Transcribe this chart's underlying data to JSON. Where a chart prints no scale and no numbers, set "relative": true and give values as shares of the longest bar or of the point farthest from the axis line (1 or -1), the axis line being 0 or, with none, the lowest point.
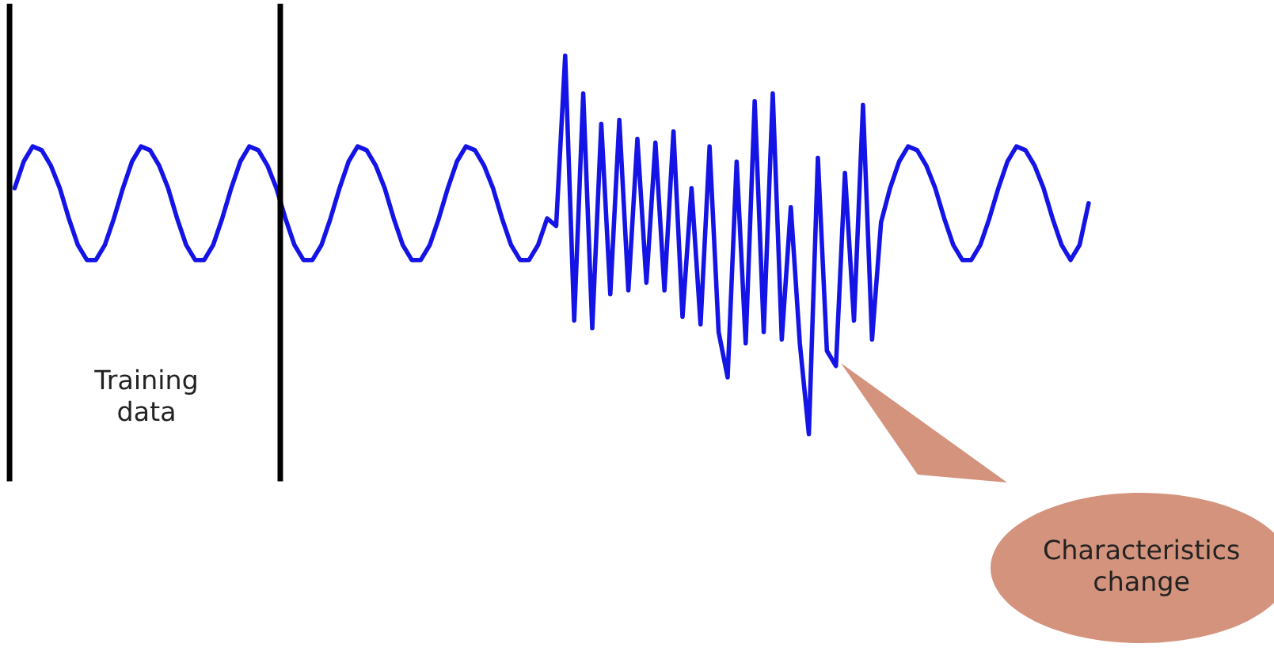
{
  "chart_data": {
    "type": "line",
    "relative": true,
    "tick_labels": false,
    "categories": [
      null,
      null,
      null,
      null,
      null,
      null,
      null,
      null,
      null,
      null,
      null,
      null,
      null,
      null,
      null,
      null,
      null,
      null,
      null,
      null,
      null,
      null,
      null,
      null,
      null,
      null,
      null,
      null,
      null,
      null,
      null,
      null,
      null,
      null,
      null,
      null,
      null,
      null,
      null,
      null,
      null,
      null,
      null,
      null,
      null,
      null,
      null,
      null,
      null,
      null,
      null,
      null,
      null,
      null,
      null,
      null,
      null,
      null,
      null,
      null,
      null,
      null,
      null,
      null,
      null,
      null,
      null,
      null,
      null,
      null,
      null,
      null,
      null,
      null,
      null,
      null,
      null,
      null,
      null,
      null,
      null,
      null,
      null,
      null,
      null,
      null,
      null,
      null,
      null,
      null,
      null,
      null,
      null,
      null,
      null,
      null,
      null,
      null,
      null,
      null,
      null,
      null,
      null,
      null,
      null,
      null,
      null,
      null,
      null,
      null,
      null,
      null,
      null,
      null,
      null,
      null,
      null,
      null,
      null,
      null
    ],
    "series": [
      {
        "color": "#1414e6",
        "values": [
          0.65,
          0.72,
          0.76,
          0.75,
          0.71,
          0.65,
          0.57,
          0.5,
          0.46,
          0.46,
          0.5,
          0.57,
          0.65,
          0.72,
          0.76,
          0.75,
          0.71,
          0.65,
          0.57,
          0.5,
          0.46,
          0.46,
          0.5,
          0.57,
          0.65,
          0.72,
          0.76,
          0.75,
          0.71,
          0.65,
          0.57,
          0.5,
          0.46,
          0.46,
          0.5,
          0.57,
          0.65,
          0.72,
          0.76,
          0.75,
          0.71,
          0.65,
          0.57,
          0.5,
          0.46,
          0.46,
          0.5,
          0.57,
          0.65,
          0.72,
          0.76,
          0.75,
          0.71,
          0.65,
          0.57,
          0.5,
          0.46,
          0.46,
          0.5,
          0.57,
          0.55,
          1.0,
          0.3,
          0.9,
          0.28,
          0.82,
          0.37,
          0.83,
          0.38,
          0.78,
          0.4,
          0.77,
          0.38,
          0.8,
          0.31,
          0.65,
          0.29,
          0.76,
          0.27,
          0.15,
          0.72,
          0.24,
          0.88,
          0.27,
          0.9,
          0.25,
          0.6,
          0.24,
          0.0,
          0.73,
          0.22,
          0.18,
          0.69,
          0.3,
          0.87,
          0.25,
          0.56,
          0.65,
          0.72,
          0.76,
          0.75,
          0.71,
          0.65,
          0.57,
          0.5,
          0.46,
          0.46,
          0.5,
          0.57,
          0.65,
          0.72,
          0.76,
          0.75,
          0.71,
          0.65,
          0.57,
          0.5,
          0.46,
          0.5,
          0.61
        ]
      }
    ],
    "annotations": [
      "Training data",
      "Characteristics change"
    ]
  }
}
